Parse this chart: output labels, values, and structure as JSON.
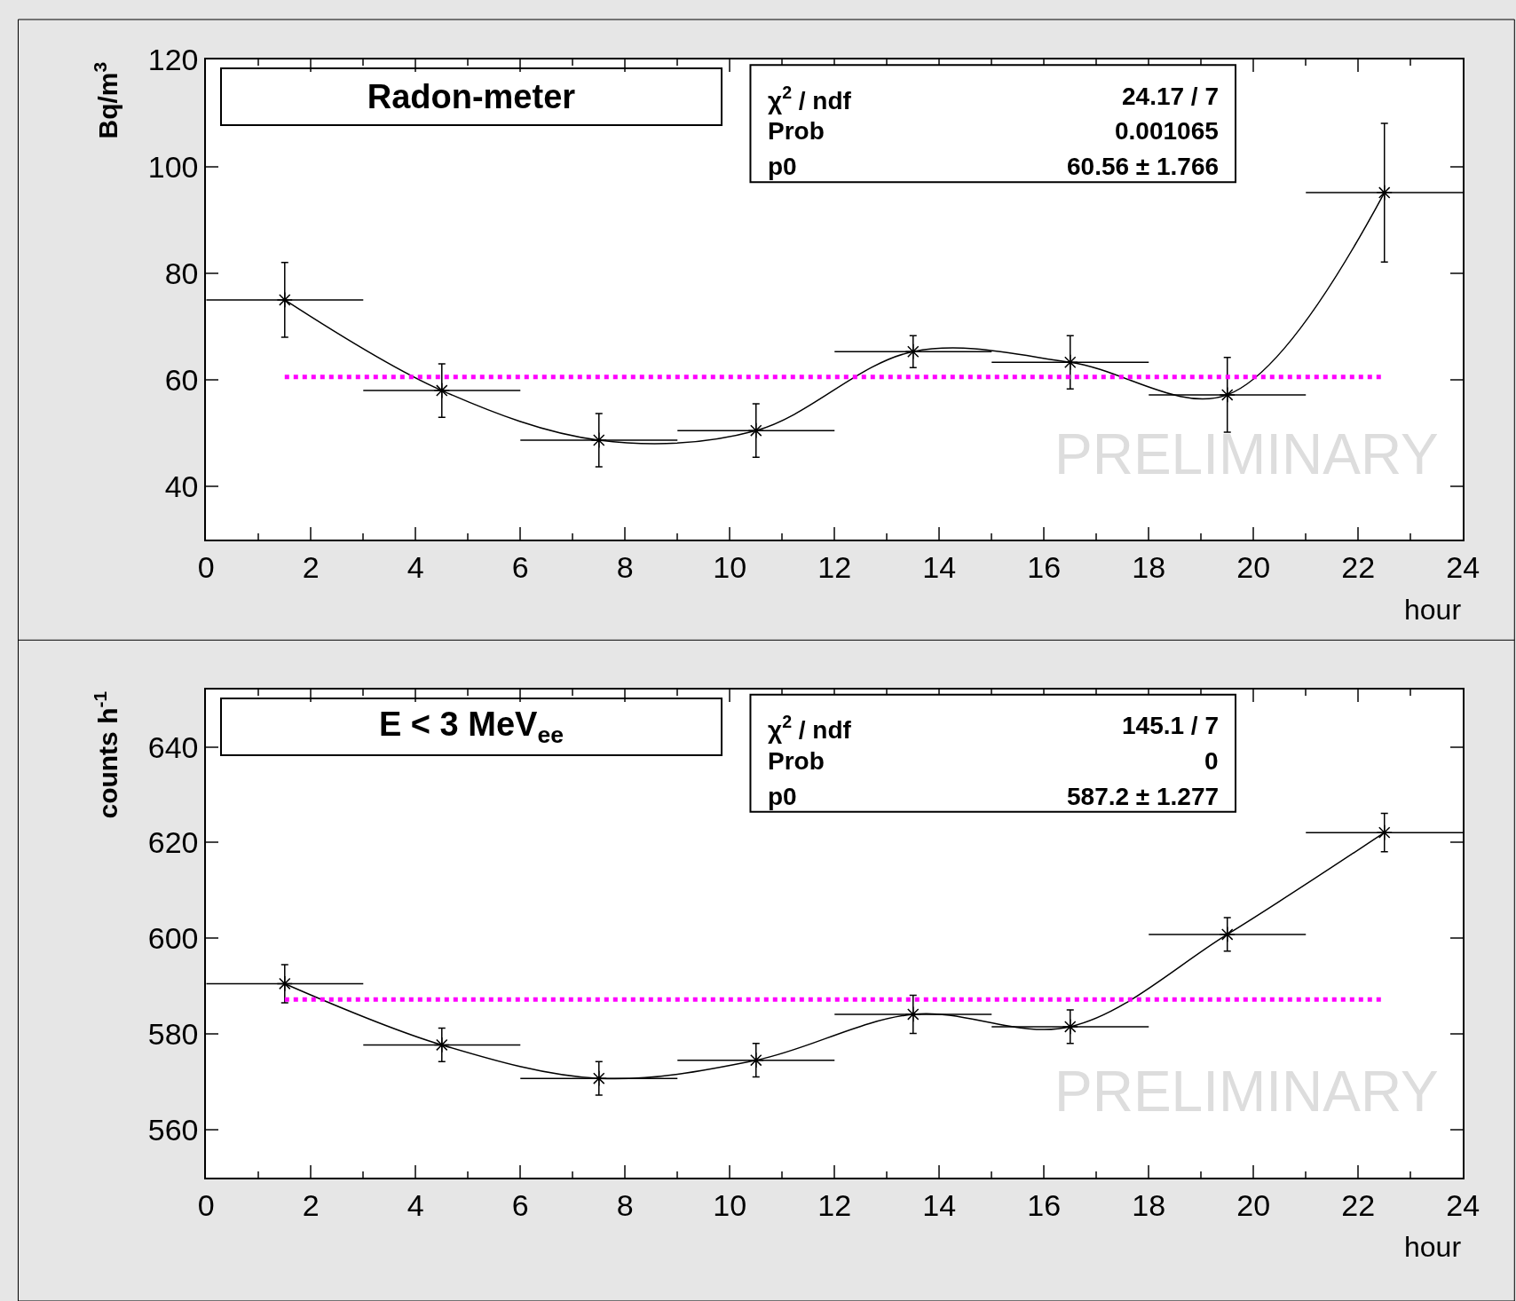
{
  "chart_data": [
    {
      "type": "line",
      "title": "Radon-meter",
      "xlabel": "hour",
      "ylabel": "Bq/m$^{3}$",
      "x": [
        1.5,
        4.5,
        7.5,
        10.5,
        13.5,
        16.5,
        19.5,
        22.5
      ],
      "xlim": [
        0,
        24
      ],
      "xticks": [
        0,
        2,
        4,
        6,
        8,
        10,
        12,
        14,
        16,
        18,
        20,
        22,
        24
      ],
      "ylim": [
        30,
        120
      ],
      "yticks": [
        40,
        60,
        80,
        100,
        120
      ],
      "series": [
        {
          "color": "#000000",
          "values": [
            75,
            58,
            48.7,
            50.5,
            65.3,
            63.3,
            57.2,
            95.1
          ],
          "errors": [
            7,
            5,
            5,
            5,
            3,
            5,
            7,
            13
          ],
          "xerrors": [
            1.5,
            1.5,
            1.5,
            1.5,
            1.5,
            1.5,
            1.5,
            1.5
          ]
        }
      ],
      "marker": "cross",
      "ref_lines": [
        {
          "axis": "y",
          "value": 60.56,
          "color": "#ff00ff",
          "line_style": "dotted"
        }
      ],
      "annotations": [
        "χ$^{2}$ / ndf",
        "24.17 / 7",
        "Prob",
        "0.001065",
        "p0",
        "60.56 ± 1.766",
        "PRELIMINARY"
      ]
    },
    {
      "type": "line",
      "title": "E < 3 MeV$_{ee}$",
      "xlabel": "hour",
      "ylabel": "counts h$^{-1}$",
      "x": [
        1.5,
        4.5,
        7.5,
        10.5,
        13.5,
        16.5,
        19.5,
        22.5
      ],
      "xlim": [
        0,
        24
      ],
      "xticks": [
        0,
        2,
        4,
        6,
        8,
        10,
        12,
        14,
        16,
        18,
        20,
        22,
        24
      ],
      "ylim": [
        550,
        652
      ],
      "yticks": [
        560,
        580,
        600,
        620,
        640
      ],
      "series": [
        {
          "color": "#000000",
          "values": [
            590.5,
            577.7,
            570.7,
            574.5,
            584.1,
            581.5,
            600.8,
            622.1
          ],
          "errors": [
            4,
            3.5,
            3.5,
            3.5,
            4,
            3.5,
            3.5,
            4
          ],
          "xerrors": [
            1.5,
            1.5,
            1.5,
            1.5,
            1.5,
            1.5,
            1.5,
            1.5
          ]
        }
      ],
      "marker": "cross",
      "ref_lines": [
        {
          "axis": "y",
          "value": 587.2,
          "color": "#ff00ff",
          "line_style": "dotted"
        }
      ],
      "annotations": [
        "χ$^{2}$ / ndf",
        "145.1 / 7",
        "Prob",
        "0",
        "p0",
        "587.2 ± 1.277",
        "PRELIMINARY"
      ]
    }
  ]
}
